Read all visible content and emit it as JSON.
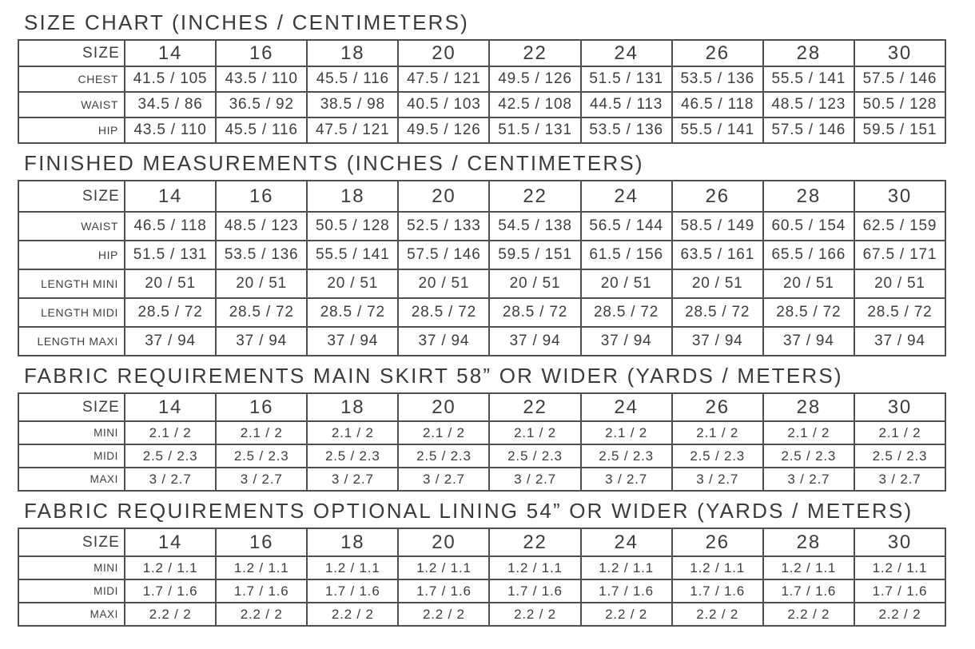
{
  "page": {
    "background": "#ffffff",
    "text_color": "#3d3d3d",
    "border_color": "#4f4f4f"
  },
  "corner_label": "SIZE",
  "sizes": [
    "14",
    "16",
    "18",
    "20",
    "22",
    "24",
    "26",
    "28",
    "30"
  ],
  "tables": [
    {
      "id": "size-chart",
      "title": "SIZE CHART (INCHES / CENTIMETERS)",
      "rows": [
        {
          "label": "CHEST",
          "values": [
            "41.5 / 105",
            "43.5 / 110",
            "45.5 / 116",
            "47.5 / 121",
            "49.5 / 126",
            "51.5 / 131",
            "53.5 / 136",
            "55.5 / 141",
            "57.5 / 146"
          ]
        },
        {
          "label": "WAIST",
          "values": [
            "34.5 / 86",
            "36.5 / 92",
            "38.5 / 98",
            "40.5 / 103",
            "42.5 / 108",
            "44.5 / 113",
            "46.5 / 118",
            "48.5 / 123",
            "50.5 / 128"
          ]
        },
        {
          "label": "HIP",
          "values": [
            "43.5 / 110",
            "45.5 / 116",
            "47.5 / 121",
            "49.5 / 126",
            "51.5 / 131",
            "53.5 / 136",
            "55.5 / 141",
            "57.5 / 146",
            "59.5 / 151"
          ]
        }
      ]
    },
    {
      "id": "finished-measurements",
      "title": "FINISHED MEASUREMENTS (INCHES / CENTIMETERS)",
      "rows": [
        {
          "label": "WAIST",
          "values": [
            "46.5 / 118",
            "48.5 / 123",
            "50.5 / 128",
            "52.5 / 133",
            "54.5 / 138",
            "56.5 / 144",
            "58.5 / 149",
            "60.5 / 154",
            "62.5 / 159"
          ]
        },
        {
          "label": "HIP",
          "values": [
            "51.5 / 131",
            "53.5 / 136",
            "55.5 / 141",
            "57.5 / 146",
            "59.5 / 151",
            "61.5 / 156",
            "63.5 / 161",
            "65.5 / 166",
            "67.5 / 171"
          ]
        },
        {
          "label": "LENGTH MINI",
          "values": [
            "20 / 51",
            "20 / 51",
            "20 / 51",
            "20 / 51",
            "20 / 51",
            "20 / 51",
            "20 / 51",
            "20 / 51",
            "20 / 51"
          ]
        },
        {
          "label": "LENGTH MIDI",
          "values": [
            "28.5 / 72",
            "28.5 / 72",
            "28.5 / 72",
            "28.5 / 72",
            "28.5 / 72",
            "28.5 / 72",
            "28.5 / 72",
            "28.5 / 72",
            "28.5 / 72"
          ]
        },
        {
          "label": "LENGTH MAXI",
          "values": [
            "37 / 94",
            "37 / 94",
            "37 / 94",
            "37 / 94",
            "37 / 94",
            "37 / 94",
            "37 / 94",
            "37 / 94",
            "37 / 94"
          ]
        }
      ]
    },
    {
      "id": "fabric-main-skirt",
      "title": "FABRIC REQUIREMENTS MAIN SKIRT 58” OR WIDER (YARDS / METERS)",
      "rows": [
        {
          "label": "MINI",
          "values": [
            "2.1 / 2",
            "2.1 / 2",
            "2.1 / 2",
            "2.1 / 2",
            "2.1 / 2",
            "2.1 / 2",
            "2.1 / 2",
            "2.1 / 2",
            "2.1 / 2"
          ]
        },
        {
          "label": "MIDI",
          "values": [
            "2.5 / 2.3",
            "2.5 / 2.3",
            "2.5 / 2.3",
            "2.5 / 2.3",
            "2.5 / 2.3",
            "2.5 / 2.3",
            "2.5 / 2.3",
            "2.5 / 2.3",
            "2.5 / 2.3"
          ]
        },
        {
          "label": "MAXI",
          "values": [
            "3 / 2.7",
            "3 / 2.7",
            "3 / 2.7",
            "3 / 2.7",
            "3 / 2.7",
            "3 / 2.7",
            "3 / 2.7",
            "3 / 2.7",
            "3 / 2.7"
          ]
        }
      ]
    },
    {
      "id": "fabric-optional-lining",
      "title": "FABRIC REQUIREMENTS OPTIONAL LINING 54” OR WIDER (YARDS / METERS)",
      "rows": [
        {
          "label": "MINI",
          "values": [
            "1.2 / 1.1",
            "1.2 / 1.1",
            "1.2 / 1.1",
            "1.2 / 1.1",
            "1.2 / 1.1",
            "1.2 / 1.1",
            "1.2 / 1.1",
            "1.2 / 1.1",
            "1.2 / 1.1"
          ]
        },
        {
          "label": "MIDI",
          "values": [
            "1.7 / 1.6",
            "1.7 / 1.6",
            "1.7 / 1.6",
            "1.7 / 1.6",
            "1.7 / 1.6",
            "1.7 / 1.6",
            "1.7 / 1.6",
            "1.7 / 1.6",
            "1.7 / 1.6"
          ]
        },
        {
          "label": "MAXI",
          "values": [
            "2.2 / 2",
            "2.2 / 2",
            "2.2 / 2",
            "2.2 / 2",
            "2.2 / 2",
            "2.2 / 2",
            "2.2 / 2",
            "2.2 / 2",
            "2.2 / 2"
          ]
        }
      ]
    }
  ]
}
